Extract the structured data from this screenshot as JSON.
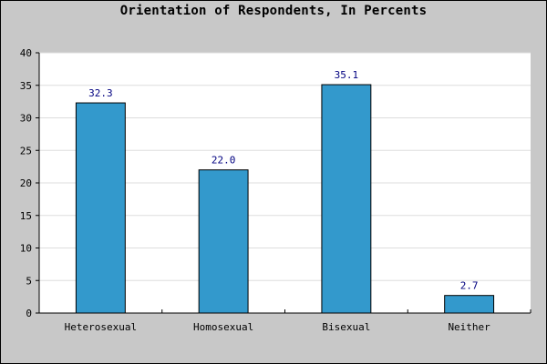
{
  "chart_data": {
    "type": "bar",
    "title": "Orientation of Respondents, In Percents",
    "categories": [
      "Heterosexual",
      "Homosexual",
      "Bisexual",
      "Neither"
    ],
    "values": [
      32.3,
      22.0,
      35.1,
      2.7
    ],
    "data_labels": [
      "32.3",
      "22.0",
      "35.1",
      "2.7"
    ],
    "xlabel": "",
    "ylabel": "",
    "ylim": [
      0,
      40
    ],
    "yticks": [
      0,
      5,
      10,
      15,
      20,
      25,
      30,
      35,
      40
    ],
    "grid": true,
    "legend": "none",
    "colors": {
      "bar": "#3399cc",
      "bar_outline": "#000000",
      "plot_bg": "#ffffff",
      "page_bg": "#c8c8c8",
      "grid": "#dddddd",
      "data_label": "#000080"
    }
  }
}
